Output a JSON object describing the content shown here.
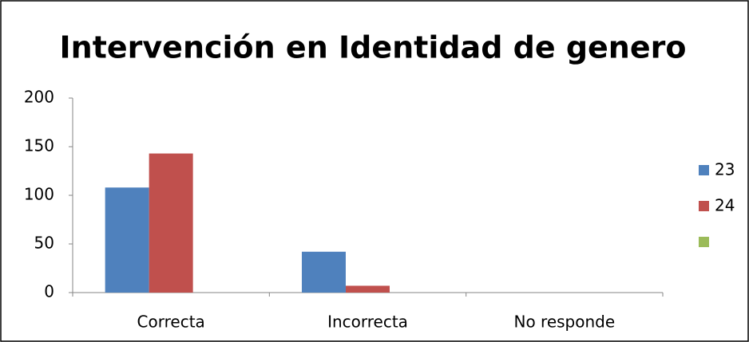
{
  "chart_data": {
    "type": "bar",
    "title": "Intervención en Identidad de genero",
    "categories": [
      "Correcta",
      "Incorrecta",
      "No responde"
    ],
    "series": [
      {
        "name": "23",
        "color": "#4f81bd",
        "values": [
          108,
          42,
          0
        ]
      },
      {
        "name": "24",
        "color": "#c0504d",
        "values": [
          143,
          7,
          0
        ]
      },
      {
        "name": null,
        "color": "#9bbb59",
        "values": [
          0,
          0,
          0
        ]
      }
    ],
    "ylim": [
      0,
      200
    ],
    "yticks": [
      0,
      50,
      100,
      150,
      200
    ],
    "grid": false,
    "legend": "right"
  }
}
